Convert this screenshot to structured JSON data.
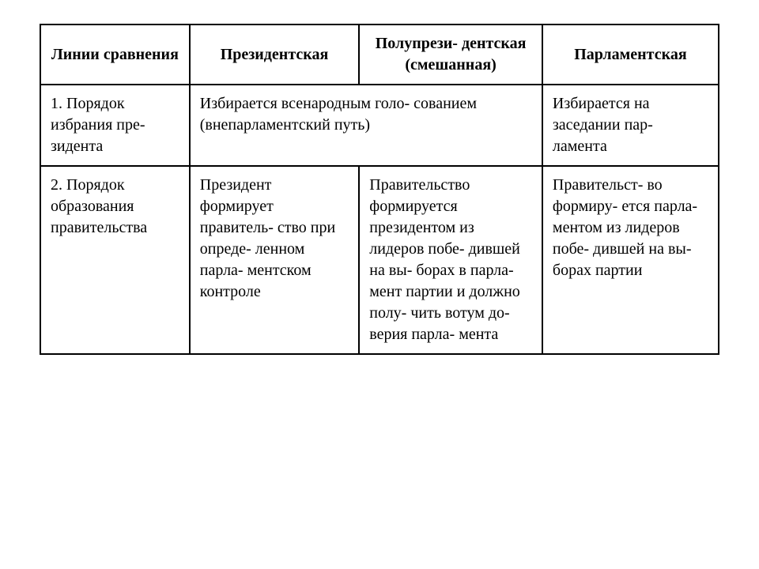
{
  "table": {
    "type": "table",
    "background_color": "#ffffff",
    "border_color": "#000000",
    "border_width": 2,
    "text_color": "#000000",
    "font_family": "serif",
    "header_fontsize": 20,
    "cell_fontsize": 20,
    "column_widths_pct": [
      22,
      25,
      27,
      26
    ],
    "headers": {
      "col1": "Линии сравнения",
      "col2": "Президентская",
      "col3": "Полупрези-\nдентская (смешанная)",
      "col4": "Парламентская"
    },
    "rows": [
      {
        "col1": "1. Порядок избрания пре-\nзидента",
        "col2_merged": "Избирается всенародным голо-\nсованием (внепарламентский путь)",
        "col4": "Избирается на заседании пар-\nламента"
      },
      {
        "col1": "2. Порядок образования правительства",
        "col2": "Президент формирует правитель-\nство при опреде-\nленном парла-\nментском контроле",
        "col3": "Правительство формируется президентом из лидеров побе-\nдившей на вы-\nборах в парла-\nмент партии и должно полу-\nчить вотум до-\nверия парла-\nмента",
        "col4": "Правительст-\nво формиру-\nется парла-\nментом из лидеров побе-\nдившей на вы-\nборах партии"
      }
    ]
  }
}
